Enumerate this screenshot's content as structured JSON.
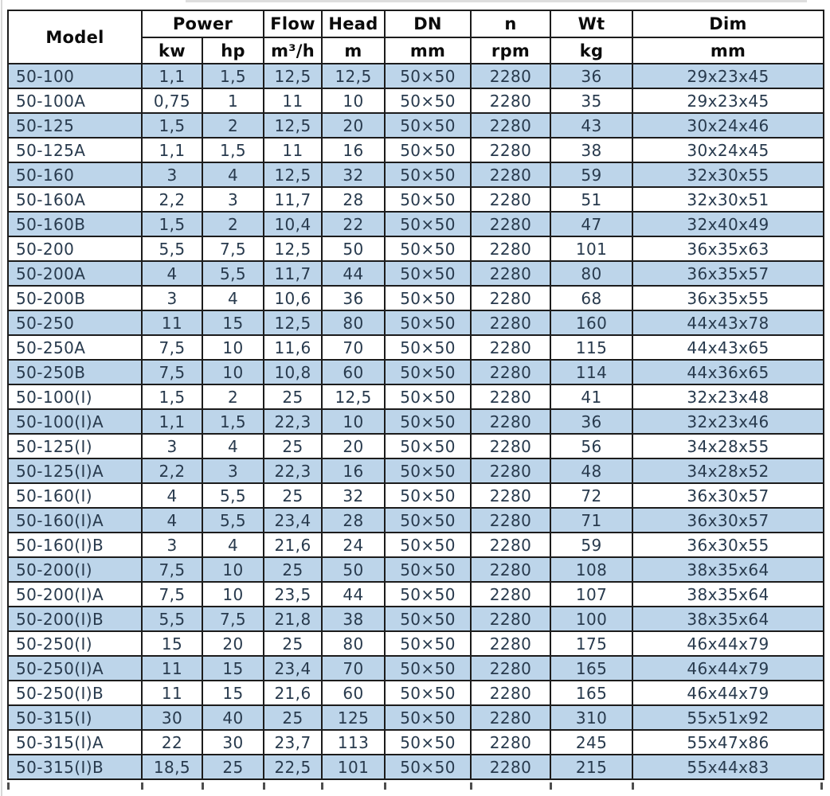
{
  "colors": {
    "row_alt_blue": "#bdd5ea",
    "row_white": "#ffffff",
    "body_text": "#283a4d",
    "header_text": "#0b0b0b",
    "grid_border": "#1c1c1c"
  },
  "chart_data": {
    "type": "table",
    "header": {
      "model": "Model",
      "power": {
        "label": "Power",
        "units": [
          "kw",
          "hp"
        ]
      },
      "flow": {
        "label": "Flow",
        "unit": "m³/h"
      },
      "head": {
        "label": "Head",
        "unit": "m"
      },
      "dn": {
        "label": "DN",
        "unit": "mm"
      },
      "n": {
        "label": "n",
        "unit": "rpm"
      },
      "wt": {
        "label": "Wt",
        "unit": "kg"
      },
      "dim": {
        "label": "Dim",
        "unit": "mm"
      }
    },
    "rows": [
      [
        "50-100",
        "1,1",
        "1,5",
        "12,5",
        "12,5",
        "50×50",
        "2280",
        "36",
        "29x23x45"
      ],
      [
        "50-100A",
        "0,75",
        "1",
        "11",
        "10",
        "50×50",
        "2280",
        "35",
        "29x23x45"
      ],
      [
        "50-125",
        "1,5",
        "2",
        "12,5",
        "20",
        "50×50",
        "2280",
        "43",
        "30x24x46"
      ],
      [
        "50-125A",
        "1,1",
        "1,5",
        "11",
        "16",
        "50×50",
        "2280",
        "38",
        "30x24x45"
      ],
      [
        "50-160",
        "3",
        "4",
        "12,5",
        "32",
        "50×50",
        "2280",
        "59",
        "32x30x55"
      ],
      [
        "50-160A",
        "2,2",
        "3",
        "11,7",
        "28",
        "50×50",
        "2280",
        "51",
        "32x30x51"
      ],
      [
        "50-160B",
        "1,5",
        "2",
        "10,4",
        "22",
        "50×50",
        "2280",
        "47",
        "32x40x49"
      ],
      [
        "50-200",
        "5,5",
        "7,5",
        "12,5",
        "50",
        "50×50",
        "2280",
        "101",
        "36x35x63"
      ],
      [
        "50-200A",
        "4",
        "5,5",
        "11,7",
        "44",
        "50×50",
        "2280",
        "80",
        "36x35x57"
      ],
      [
        "50-200B",
        "3",
        "4",
        "10,6",
        "36",
        "50×50",
        "2280",
        "68",
        "36x35x55"
      ],
      [
        "50-250",
        "11",
        "15",
        "12,5",
        "80",
        "50×50",
        "2280",
        "160",
        "44x43x78"
      ],
      [
        "50-250A",
        "7,5",
        "10",
        "11,6",
        "70",
        "50×50",
        "2280",
        "115",
        "44x43x65"
      ],
      [
        "50-250B",
        "7,5",
        "10",
        "10,8",
        "60",
        "50×50",
        "2280",
        "114",
        "44x36x65"
      ],
      [
        "50-100(I)",
        "1,5",
        "2",
        "25",
        "12,5",
        "50×50",
        "2280",
        "41",
        "32x23x48"
      ],
      [
        "50-100(I)A",
        "1,1",
        "1,5",
        "22,3",
        "10",
        "50×50",
        "2280",
        "36",
        "32x23x46"
      ],
      [
        "50-125(I)",
        "3",
        "4",
        "25",
        "20",
        "50×50",
        "2280",
        "56",
        "34x28x55"
      ],
      [
        "50-125(I)A",
        "2,2",
        "3",
        "22,3",
        "16",
        "50×50",
        "2280",
        "48",
        "34x28x52"
      ],
      [
        "50-160(I)",
        "4",
        "5,5",
        "25",
        "32",
        "50×50",
        "2280",
        "72",
        "36x30x57"
      ],
      [
        "50-160(I)A",
        "4",
        "5,5",
        "23,4",
        "28",
        "50×50",
        "2280",
        "71",
        "36x30x57"
      ],
      [
        "50-160(I)B",
        "3",
        "4",
        "21,6",
        "24",
        "50×50",
        "2280",
        "59",
        "36x30x55"
      ],
      [
        "50-200(I)",
        "7,5",
        "10",
        "25",
        "50",
        "50×50",
        "2280",
        "108",
        "38x35x64"
      ],
      [
        "50-200(I)A",
        "7,5",
        "10",
        "23,5",
        "44",
        "50×50",
        "2280",
        "107",
        "38x35x64"
      ],
      [
        "50-200(I)B",
        "5,5",
        "7,5",
        "21,8",
        "38",
        "50×50",
        "2280",
        "100",
        "38x35x64"
      ],
      [
        "50-250(I)",
        "15",
        "20",
        "25",
        "80",
        "50×50",
        "2280",
        "175",
        "46x44x79"
      ],
      [
        "50-250(I)A",
        "11",
        "15",
        "23,4",
        "70",
        "50×50",
        "2280",
        "165",
        "46x44x79"
      ],
      [
        "50-250(I)B",
        "11",
        "15",
        "21,6",
        "60",
        "50×50",
        "2280",
        "165",
        "46x44x79"
      ],
      [
        "50-315(I)",
        "30",
        "40",
        "25",
        "125",
        "50×50",
        "2280",
        "310",
        "55x51x92"
      ],
      [
        "50-315(I)A",
        "22",
        "30",
        "23,7",
        "113",
        "50×50",
        "2280",
        "245",
        "55x47x86"
      ],
      [
        "50-315(I)B",
        "18,5",
        "25",
        "22,5",
        "101",
        "50×50",
        "2280",
        "215",
        "55x44x83"
      ]
    ]
  }
}
